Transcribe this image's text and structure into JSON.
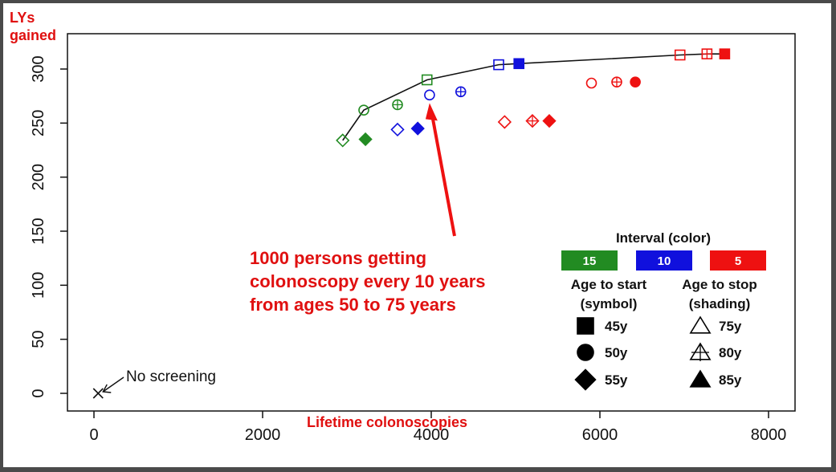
{
  "chart_data": {
    "type": "scatter",
    "xlabel": "Lifetime colonoscopies",
    "ylabel_lines": [
      "LYs",
      "gained"
    ],
    "xlim": [
      -300,
      8200
    ],
    "ylim": [
      -15,
      325
    ],
    "x_ticks": [
      0,
      2000,
      4000,
      6000,
      8000
    ],
    "y_ticks": [
      0,
      50,
      100,
      150,
      200,
      250,
      300
    ],
    "grid": false,
    "interval_colors": {
      "15": "#228b22",
      "10": "#1010dd",
      "5": "#ee1111"
    },
    "points": [
      {
        "x": 2950,
        "y": 234,
        "interval": "15",
        "start": "55y",
        "stop": "75y"
      },
      {
        "x": 3200,
        "y": 262,
        "interval": "15",
        "start": "50y",
        "stop": "75y"
      },
      {
        "x": 3220,
        "y": 235,
        "interval": "15",
        "start": "55y",
        "stop": "85y"
      },
      {
        "x": 3600,
        "y": 267,
        "interval": "15",
        "start": "50y",
        "stop": "80y"
      },
      {
        "x": 3950,
        "y": 290,
        "interval": "15",
        "start": "45y",
        "stop": "75y"
      },
      {
        "x": 3600,
        "y": 244,
        "interval": "10",
        "start": "55y",
        "stop": "75y"
      },
      {
        "x": 3840,
        "y": 245,
        "interval": "10",
        "start": "55y",
        "stop": "85y"
      },
      {
        "x": 3980,
        "y": 276,
        "interval": "10",
        "start": "50y",
        "stop": "75y"
      },
      {
        "x": 4350,
        "y": 279,
        "interval": "10",
        "start": "50y",
        "stop": "80y"
      },
      {
        "x": 4800,
        "y": 304,
        "interval": "10",
        "start": "45y",
        "stop": "75y"
      },
      {
        "x": 5040,
        "y": 305,
        "interval": "10",
        "start": "45y",
        "stop": "85y"
      },
      {
        "x": 4870,
        "y": 251,
        "interval": "5",
        "start": "55y",
        "stop": "75y"
      },
      {
        "x": 5200,
        "y": 252,
        "interval": "5",
        "start": "55y",
        "stop": "80y"
      },
      {
        "x": 5400,
        "y": 252,
        "interval": "5",
        "start": "55y",
        "stop": "85y"
      },
      {
        "x": 5900,
        "y": 287,
        "interval": "5",
        "start": "50y",
        "stop": "75y"
      },
      {
        "x": 6200,
        "y": 288,
        "interval": "5",
        "start": "50y",
        "stop": "80y"
      },
      {
        "x": 6420,
        "y": 288,
        "interval": "5",
        "start": "50y",
        "stop": "85y"
      },
      {
        "x": 6950,
        "y": 313,
        "interval": "5",
        "start": "45y",
        "stop": "75y"
      },
      {
        "x": 7270,
        "y": 314,
        "interval": "5",
        "start": "45y",
        "stop": "80y"
      },
      {
        "x": 7480,
        "y": 314,
        "interval": "5",
        "start": "45y",
        "stop": "85y"
      }
    ],
    "frontier": [
      [
        2950,
        234
      ],
      [
        3200,
        262
      ],
      [
        3950,
        290
      ],
      [
        4800,
        304
      ],
      [
        6950,
        313
      ],
      [
        7270,
        314
      ],
      [
        7480,
        314
      ]
    ],
    "no_screening": {
      "x": 50,
      "y": 0,
      "label": "No screening"
    },
    "annotation": {
      "lines": [
        "1000 persons getting",
        "colonoscopy every 10 years",
        "from ages 50 to 75 years"
      ],
      "target": [
        3980,
        276
      ]
    },
    "legend": {
      "interval_title": "Interval (color)",
      "intervals": [
        {
          "label": "15",
          "color": "#228b22"
        },
        {
          "label": "10",
          "color": "#1010dd"
        },
        {
          "label": "5",
          "color": "#ee1111"
        }
      ],
      "start_title": [
        "Age to start",
        "(symbol)"
      ],
      "start_items": [
        {
          "label": "45y",
          "symbol": "square"
        },
        {
          "label": "50y",
          "symbol": "circle"
        },
        {
          "label": "55y",
          "symbol": "diamond"
        }
      ],
      "stop_title": [
        "Age to stop",
        "(shading)"
      ],
      "stop_items": [
        {
          "label": "75y",
          "shading": "open"
        },
        {
          "label": "80y",
          "shading": "cross"
        },
        {
          "label": "85y",
          "shading": "filled"
        }
      ]
    }
  }
}
